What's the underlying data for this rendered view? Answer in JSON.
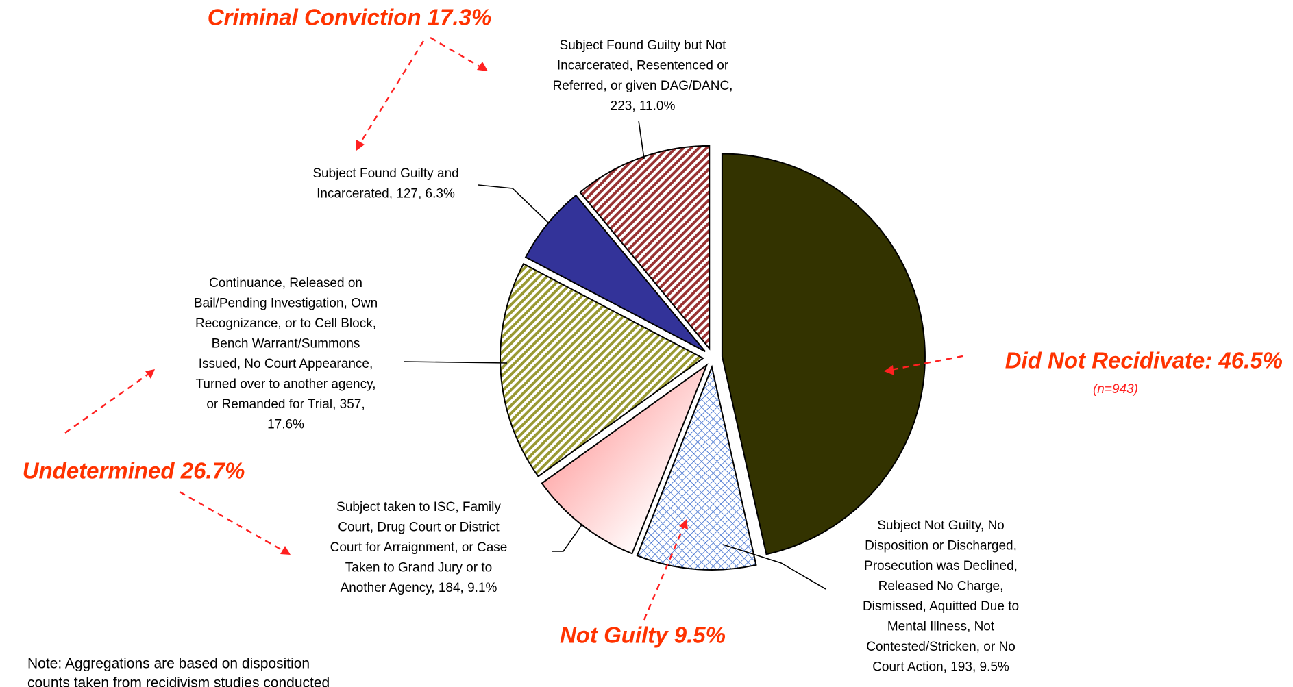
{
  "chart_data": {
    "type": "pie",
    "values": [
      46.5,
      9.5,
      9.1,
      17.6,
      6.3,
      11.0
    ],
    "labels": [
      [],
      [
        "Subject Not Guilty, No",
        "Disposition or Discharged,",
        "Prosecution was Declined,",
        "Released No Charge,",
        "Dismissed, Aquitted Due to",
        "Mental Illness, Not",
        "Contested/Stricken, or No",
        "Court Action, 193, 9.5%"
      ],
      [
        "Subject  taken to ISC, Family",
        "Court, Drug Court or District",
        "Court for Arraignment, or Case",
        "Taken to Grand Jury or to",
        "Another Agency, 184, 9.1%"
      ],
      [
        "Continuance, Released on",
        "Bail/Pending Investigation, Own",
        "Recognizance, or to Cell Block,",
        "Bench Warrant/Summons",
        "Issued, No Court Appearance,",
        "Turned over to another agency,",
        "or Remanded for Trial, 357,",
        "17.6%"
      ],
      [
        "Subject Found Guilty and",
        "Incarcerated, 127, 6.3%"
      ],
      [
        "Subject Found Guilty but Not",
        "Incarcerated, Resentenced or",
        "Referred, or given DAG/DANC,",
        "223, 11.0%"
      ]
    ],
    "colors": [
      "#333300",
      "#3366cc",
      "#ff8080",
      "#999933",
      "#333399",
      "#993333"
    ],
    "patterns": [
      "solid",
      "crosshatch",
      "gradient",
      "stripes",
      "solid",
      "stripes"
    ],
    "annotations": [
      "Criminal Conviction 17.3%",
      "Did Not Recidivate: 46.5%",
      "(n=943)",
      "Undetermined 26.7%",
      "Not Guilty 9.5%"
    ],
    "note": [
      "Note: Aggregations are based on disposition",
      "counts taken from recidivism studies conducted"
    ]
  }
}
